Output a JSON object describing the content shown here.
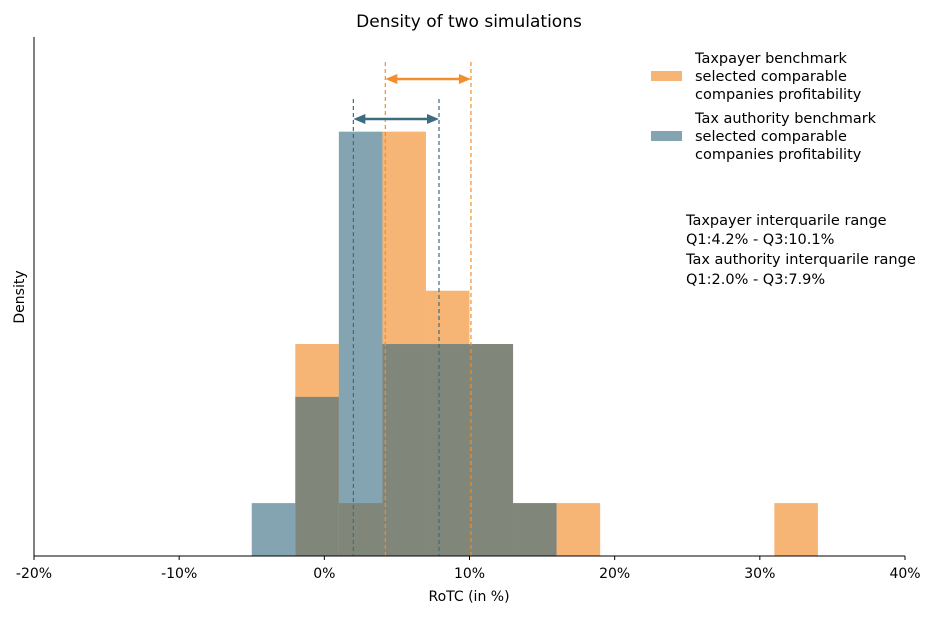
{
  "chart_data": {
    "type": "histogram",
    "title": "Density of two simulations",
    "xlabel": "RoTC (in %)",
    "ylabel": "Density",
    "xlim": [
      -20,
      40
    ],
    "ylim": [
      0,
      0.1305
    ],
    "x_ticks": [
      -20,
      -10,
      0,
      10,
      20,
      30,
      40
    ],
    "x_tick_labels": [
      "-20%",
      "-10%",
      "0%",
      "10%",
      "20%",
      "30%",
      "40%"
    ],
    "grid": false,
    "legend_position": "top-right",
    "bin_edges": [
      -5,
      -2,
      1,
      4,
      7,
      10,
      13,
      16,
      19,
      22,
      25,
      28,
      31,
      34
    ],
    "series": [
      {
        "name": "Taxpayer benchmark\nselected comparable\ncompanies profitability",
        "legend_lines": [
          "Taxpayer benchmark",
          "selected comparable",
          "companies profitability"
        ],
        "color": "#f6b575",
        "values": [
          0,
          0.0533,
          0.0133,
          0.1067,
          0.0667,
          0.0533,
          0.0133,
          0.0133,
          0,
          0,
          0,
          0,
          0.0133
        ],
        "q1": 4.2,
        "q3": 10.1,
        "line_color": "#f28e2b"
      },
      {
        "name": "Tax authority benchmark\nselected comparable\ncompanies profitability",
        "legend_lines": [
          "Tax authority benchmark",
          "selected comparable",
          "companies profitability"
        ],
        "color": "#84a4b1",
        "values": [
          0.0133,
          0.04,
          0.1067,
          0.0533,
          0.0533,
          0.0533,
          0.0133,
          0,
          0,
          0,
          0,
          0,
          0
        ],
        "q1": 2.0,
        "q3": 7.9,
        "line_color": "#3d6b80"
      }
    ],
    "annotations": [
      "Taxpayer interquarile range",
      "Q1:4.2% - Q3:10.1%",
      "Tax authority interquarile range",
      "Q1:2.0% - Q3:7.9%"
    ]
  }
}
